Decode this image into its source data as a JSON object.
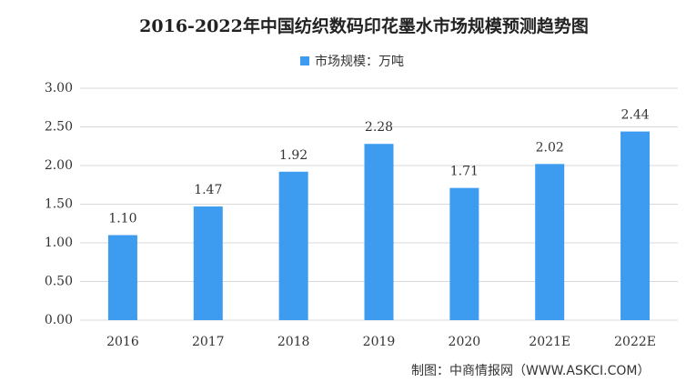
{
  "chart_data": {
    "type": "bar",
    "title": "2016-2022年中国纺织数码印花墨水市场规模预测趋势图",
    "series": [
      {
        "name": "市场规模：万吨",
        "color": "#3d9cf0",
        "values": [
          1.1,
          1.47,
          1.92,
          2.28,
          1.71,
          2.02,
          2.44
        ],
        "value_labels": [
          "1.10",
          "1.47",
          "1.92",
          "2.28",
          "1.71",
          "2.02",
          "2.44"
        ]
      }
    ],
    "categories": [
      "2016",
      "2017",
      "2018",
      "2019",
      "2020",
      "2021E",
      "2022E"
    ],
    "ylim": [
      0,
      3
    ],
    "yticks": [
      {
        "value": 0,
        "label": "0.00"
      },
      {
        "value": 0.5,
        "label": "0.50"
      },
      {
        "value": 1,
        "label": "1.00"
      },
      {
        "value": 1.5,
        "label": "1.50"
      },
      {
        "value": 2,
        "label": "2.00"
      },
      {
        "value": 2.5,
        "label": "2.50"
      },
      {
        "value": 3,
        "label": "3.00"
      }
    ],
    "grid": true,
    "legend": "top",
    "source": "制图：中商情报网（WWW.ASKCI.COM）"
  }
}
